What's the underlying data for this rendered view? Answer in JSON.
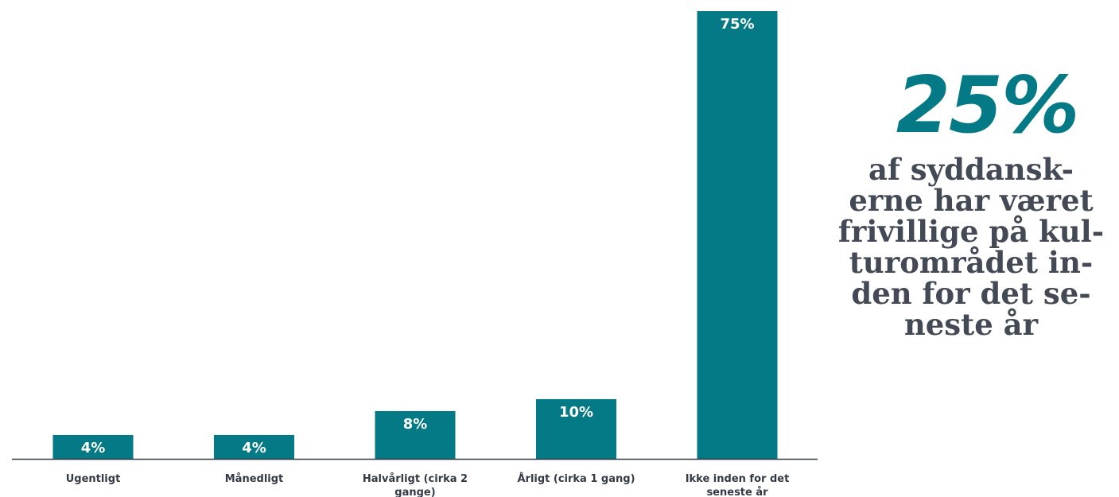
{
  "chart_data": {
    "type": "bar",
    "categories": [
      "Ugentligt",
      "Månedligt",
      "Halvårligt (cirka 2 gange)",
      "Årligt (cirka 1 gang)",
      "Ikke inden for det seneste år"
    ],
    "category_lines": [
      [
        "Ugentligt"
      ],
      [
        "Månedligt"
      ],
      [
        "Halvårligt (cirka 2",
        "gange)"
      ],
      [
        "Årligt (cirka 1 gang)"
      ],
      [
        "Ikke inden for det",
        "seneste år"
      ]
    ],
    "values": [
      4,
      4,
      8,
      10,
      75
    ],
    "data_labels": [
      "4%",
      "4%",
      "8%",
      "10%",
      "75%"
    ],
    "title": "",
    "xlabel": "",
    "ylabel": "",
    "ylim": [
      0,
      75
    ],
    "grid": false,
    "legend": "none",
    "colors": {
      "bar": "#037a85",
      "bar_label": "#ffffff",
      "axis_text": "#333a45"
    }
  },
  "callout": {
    "stat": "25%",
    "text": "af syddansk-\nerne har været\nfrivillige på kul-\nturområdet in-\nden for det se-\nneste år",
    "colors": {
      "stat": "#037a85",
      "text": "#444a55"
    }
  }
}
